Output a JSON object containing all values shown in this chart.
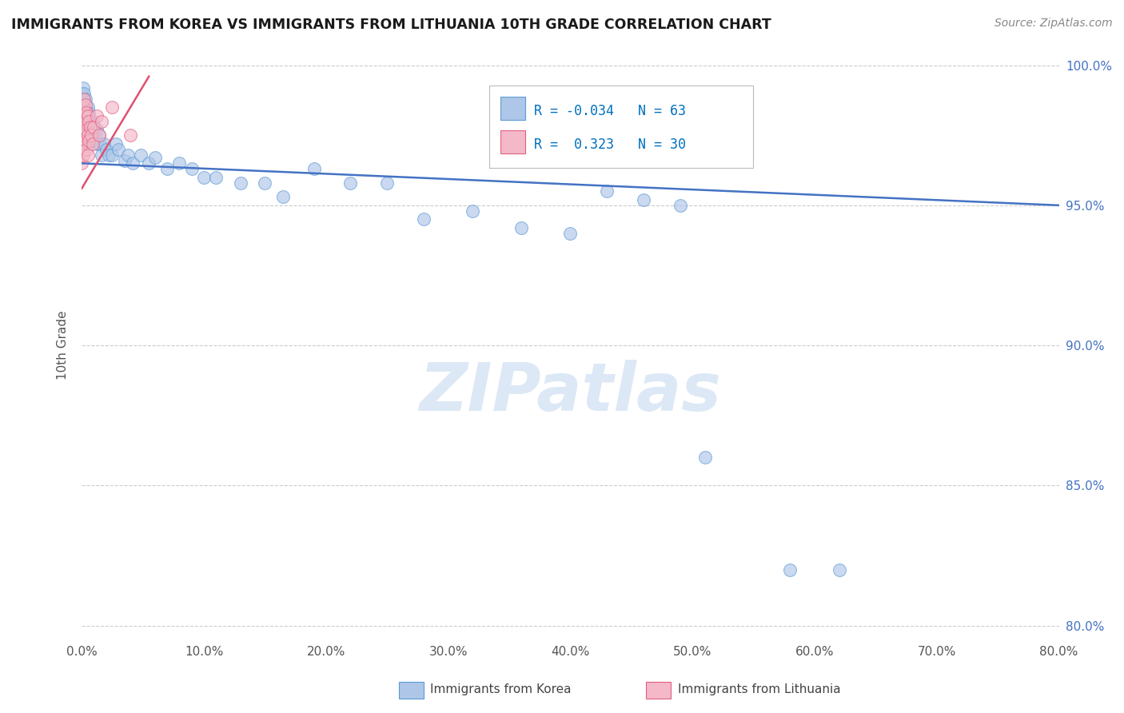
{
  "title": "IMMIGRANTS FROM KOREA VS IMMIGRANTS FROM LITHUANIA 10TH GRADE CORRELATION CHART",
  "source": "Source: ZipAtlas.com",
  "ylabel": "10th Grade",
  "y_ticks": [
    "100.0%",
    "95.0%",
    "90.0%",
    "85.0%",
    "80.0%"
  ],
  "y_tick_vals": [
    1.0,
    0.95,
    0.9,
    0.85,
    0.8
  ],
  "x_tick_positions": [
    0.0,
    0.1,
    0.2,
    0.3,
    0.4,
    0.5,
    0.6,
    0.7,
    0.8
  ],
  "x_tick_labels": [
    "0.0%",
    "10.0%",
    "20.0%",
    "30.0%",
    "40.0%",
    "50.0%",
    "60.0%",
    "70.0%",
    "80.0%"
  ],
  "xlim": [
    0.0,
    0.8
  ],
  "ylim": [
    0.795,
    1.005
  ],
  "korea_R": -0.034,
  "korea_N": 63,
  "lithuania_R": 0.323,
  "lithuania_N": 30,
  "korea_color": "#aec6e8",
  "korea_edge": "#5b9bd5",
  "lithuania_color": "#f4b8c8",
  "lithuania_edge": "#e06080",
  "korea_line_color": "#4472c4",
  "lithuania_line_color": "#e05070",
  "legend_color": "#0070c0",
  "watermark_text": "ZIPatlas",
  "watermark_color": "#dce8f5",
  "korea_line_x": [
    0.0,
    0.8
  ],
  "korea_line_y": [
    0.965,
    0.95
  ],
  "lithuania_line_x": [
    0.0,
    0.055
  ],
  "lithuania_line_y": [
    0.956,
    0.996
  ],
  "korea_x": [
    0.0,
    0.0,
    0.001,
    0.001,
    0.001,
    0.002,
    0.002,
    0.002,
    0.003,
    0.003,
    0.003,
    0.004,
    0.004,
    0.005,
    0.005,
    0.005,
    0.006,
    0.006,
    0.007,
    0.007,
    0.008,
    0.009,
    0.009,
    0.01,
    0.011,
    0.012,
    0.013,
    0.014,
    0.015,
    0.016,
    0.018,
    0.02,
    0.022,
    0.025,
    0.028,
    0.03,
    0.035,
    0.038,
    0.042,
    0.048,
    0.055,
    0.06,
    0.07,
    0.08,
    0.09,
    0.1,
    0.11,
    0.13,
    0.15,
    0.165,
    0.19,
    0.22,
    0.25,
    0.28,
    0.32,
    0.36,
    0.4,
    0.43,
    0.46,
    0.49,
    0.51,
    0.58,
    0.62
  ],
  "korea_y": [
    0.99,
    0.985,
    0.992,
    0.988,
    0.982,
    0.99,
    0.985,
    0.978,
    0.988,
    0.983,
    0.977,
    0.983,
    0.976,
    0.985,
    0.98,
    0.972,
    0.983,
    0.975,
    0.98,
    0.973,
    0.978,
    0.98,
    0.973,
    0.977,
    0.974,
    0.977,
    0.972,
    0.975,
    0.972,
    0.968,
    0.972,
    0.97,
    0.968,
    0.968,
    0.972,
    0.97,
    0.966,
    0.968,
    0.965,
    0.968,
    0.965,
    0.967,
    0.963,
    0.965,
    0.963,
    0.96,
    0.96,
    0.958,
    0.958,
    0.953,
    0.963,
    0.958,
    0.958,
    0.945,
    0.948,
    0.942,
    0.94,
    0.955,
    0.952,
    0.95,
    0.86,
    0.82,
    0.82
  ],
  "lithuania_x": [
    0.0,
    0.0,
    0.0,
    0.001,
    0.001,
    0.001,
    0.001,
    0.002,
    0.002,
    0.002,
    0.003,
    0.003,
    0.003,
    0.004,
    0.004,
    0.004,
    0.005,
    0.005,
    0.005,
    0.006,
    0.006,
    0.007,
    0.008,
    0.009,
    0.01,
    0.012,
    0.014,
    0.016,
    0.025,
    0.04
  ],
  "lithuania_y": [
    0.978,
    0.972,
    0.965,
    0.985,
    0.98,
    0.975,
    0.968,
    0.988,
    0.982,
    0.975,
    0.986,
    0.98,
    0.973,
    0.983,
    0.977,
    0.97,
    0.982,
    0.975,
    0.968,
    0.98,
    0.973,
    0.978,
    0.975,
    0.972,
    0.978,
    0.982,
    0.975,
    0.98,
    0.985,
    0.975
  ]
}
